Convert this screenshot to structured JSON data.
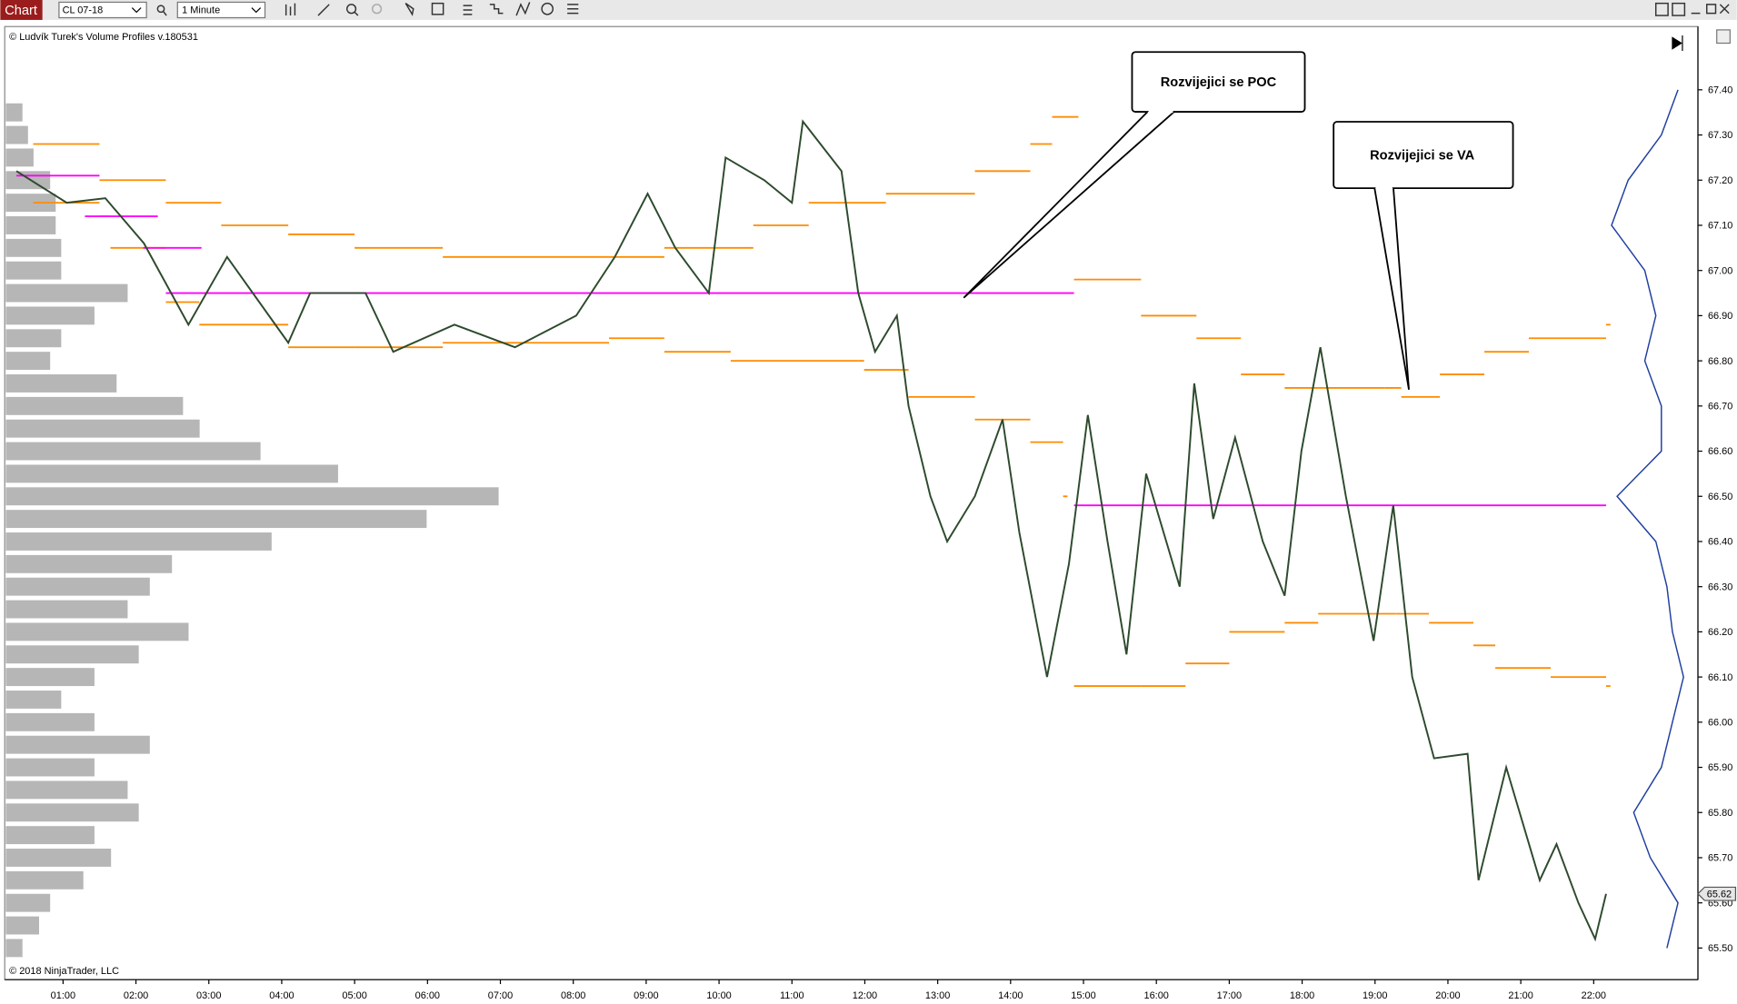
{
  "toolbar": {
    "tab": "Chart",
    "instrument": "CL 07-18",
    "interval": "1 Minute"
  },
  "chart_data": {
    "type": "line",
    "indicator_label": "© Ludvík Turek's Volume Profiles v.180531",
    "copyright": "© 2018 NinjaTrader, LLC",
    "annotations": [
      "Rozvijejici se POC",
      "Rozvijejici se VA"
    ],
    "x": [
      0.36,
      1.05,
      1.58,
      2.11,
      2.72,
      3.25,
      4.09,
      4.39,
      5.15,
      5.53,
      6.37,
      7.2,
      8.04,
      8.57,
      9.02,
      9.4,
      9.86,
      10.09,
      10.62,
      11.0,
      11.15,
      11.68,
      11.91,
      12.14,
      12.44,
      12.6,
      12.9,
      13.13,
      13.51,
      13.89,
      14.12,
      14.5,
      14.8,
      15.06,
      15.33,
      15.59,
      15.86,
      16.32,
      16.52,
      16.78,
      17.08,
      17.46,
      17.76,
      17.99,
      18.25,
      18.6,
      18.98,
      19.25,
      19.51,
      19.81,
      20.27,
      20.42,
      20.8,
      21.26,
      21.49,
      21.79,
      22.02,
      22.17
    ],
    "values": [
      67.22,
      67.15,
      67.16,
      67.06,
      66.88,
      67.03,
      66.84,
      66.95,
      66.95,
      66.82,
      66.88,
      66.83,
      66.9,
      67.03,
      67.17,
      67.05,
      66.95,
      67.25,
      67.2,
      67.15,
      67.33,
      67.22,
      66.95,
      66.82,
      66.9,
      66.7,
      66.5,
      66.4,
      66.5,
      66.67,
      66.42,
      66.1,
      66.35,
      66.68,
      66.4,
      66.15,
      66.55,
      66.3,
      66.75,
      66.45,
      66.63,
      66.4,
      66.28,
      66.6,
      66.83,
      66.5,
      66.18,
      66.48,
      66.1,
      65.92,
      65.93,
      65.65,
      65.9,
      65.65,
      65.73,
      65.6,
      65.52,
      65.62
    ],
    "color": "#2d4a2d",
    "poc_color": "#ff00ff",
    "poc": [
      {
        "x": [
          0.36,
          1.5
        ],
        "value": 67.21
      },
      {
        "x": [
          1.3,
          2.3
        ],
        "value": 67.12
      },
      {
        "x": [
          2.1,
          2.9
        ],
        "value": 67.05
      },
      {
        "x": [
          2.41,
          14.87
        ],
        "value": 66.95
      },
      {
        "x": [
          14.87,
          22.17
        ],
        "value": 66.48
      }
    ],
    "va_color": "#ff8c00",
    "value_area": [
      {
        "x": [
          0.59,
          1.5,
          2.41,
          3.17,
          4.09,
          5.0,
          6.21,
          8.49,
          9.25,
          10.47,
          11.23,
          12.29,
          13.51,
          14.27,
          14.57,
          14.87
        ],
        "values": [
          67.28,
          67.2,
          67.15,
          67.1,
          67.08,
          67.05,
          67.03,
          67.03,
          67.05,
          67.1,
          67.15,
          67.17,
          67.22,
          67.28,
          67.34,
          67.34
        ]
      },
      {
        "x": [
          0.59,
          1.5,
          1.65,
          2.41,
          2.87,
          4.09,
          5.0,
          6.21,
          8.49,
          9.25,
          10.16,
          11.91,
          11.99,
          12.6,
          13.51,
          14.27,
          14.72
        ],
        "values": [
          67.15,
          67.12,
          67.05,
          66.93,
          66.88,
          66.83,
          66.83,
          66.84,
          66.85,
          66.82,
          66.8,
          66.8,
          66.78,
          66.72,
          66.67,
          66.62,
          66.5
        ]
      },
      {
        "x": [
          14.87,
          15.79,
          16.55,
          17.16,
          17.76,
          19.13,
          19.36,
          19.89,
          20.5,
          21.11,
          22.17
        ],
        "values": [
          66.98,
          66.9,
          66.85,
          66.77,
          66.74,
          66.74,
          66.72,
          66.77,
          66.82,
          66.85,
          66.88
        ]
      },
      {
        "x": [
          14.87,
          15.79,
          16.4,
          17.0,
          17.76,
          18.22,
          19.28,
          19.74,
          20.35,
          20.65,
          21.41,
          22.17
        ],
        "values": [
          66.08,
          66.08,
          66.13,
          66.2,
          66.22,
          66.24,
          66.24,
          66.22,
          66.17,
          66.12,
          66.1,
          66.08
        ]
      }
    ],
    "profile_color": "#a9a9a9",
    "profile_levels": [
      67.35,
      67.3,
      67.25,
      67.2,
      67.15,
      67.1,
      67.05,
      67.0,
      66.95,
      66.9,
      66.85,
      66.8,
      66.75,
      66.7,
      66.65,
      66.6,
      66.55,
      66.5,
      66.45,
      66.4,
      66.35,
      66.3,
      66.25,
      66.2,
      66.15,
      66.1,
      66.05,
      66.0,
      65.95,
      65.9,
      65.85,
      65.8,
      65.75,
      65.7,
      65.65,
      65.6,
      65.55,
      65.5
    ],
    "profile_volumes": [
      15,
      20,
      25,
      40,
      45,
      45,
      50,
      50,
      110,
      80,
      50,
      40,
      100,
      160,
      175,
      230,
      300,
      445,
      380,
      240,
      150,
      130,
      110,
      165,
      120,
      80,
      50,
      80,
      130,
      80,
      110,
      120,
      80,
      95,
      70,
      40,
      30,
      15
    ],
    "right_profile_color": "#1f3f9f",
    "right_profile_levels": [
      67.4,
      67.3,
      67.2,
      67.1,
      67.0,
      66.9,
      66.8,
      66.7,
      66.6,
      66.5,
      66.4,
      66.3,
      66.2,
      66.1,
      66.0,
      65.9,
      65.8,
      65.7,
      65.6,
      65.5
    ],
    "right_profile_volumes": [
      15,
      30,
      60,
      75,
      45,
      35,
      45,
      30,
      30,
      70,
      35,
      25,
      20,
      10,
      20,
      30,
      55,
      40,
      15,
      25
    ],
    "xlim": [
      0.2,
      23.43
    ],
    "xticks": [
      {
        "value": 1,
        "label": "01:00"
      },
      {
        "value": 2,
        "label": "02:00"
      },
      {
        "value": 3,
        "label": "03:00"
      },
      {
        "value": 4,
        "label": "04:00"
      },
      {
        "value": 5,
        "label": "05:00"
      },
      {
        "value": 6,
        "label": "06:00"
      },
      {
        "value": 7,
        "label": "07:00"
      },
      {
        "value": 8,
        "label": "08:00"
      },
      {
        "value": 9,
        "label": "09:00"
      },
      {
        "value": 10,
        "label": "10:00"
      },
      {
        "value": 11,
        "label": "11:00"
      },
      {
        "value": 12,
        "label": "12:00"
      },
      {
        "value": 13,
        "label": "13:00"
      },
      {
        "value": 14,
        "label": "14:00"
      },
      {
        "value": 15,
        "label": "15:00"
      },
      {
        "value": 16,
        "label": "16:00"
      },
      {
        "value": 17,
        "label": "17:00"
      },
      {
        "value": 18,
        "label": "18:00"
      },
      {
        "value": 19,
        "label": "19:00"
      },
      {
        "value": 20,
        "label": "20:00"
      },
      {
        "value": 21,
        "label": "21:00"
      },
      {
        "value": 22,
        "label": "22:00"
      }
    ],
    "ylim": [
      65.43,
      67.54
    ],
    "yticks": [
      {
        "value": 65.5,
        "label": "65.50"
      },
      {
        "value": 65.6,
        "label": "65.60"
      },
      {
        "value": 65.7,
        "label": "65.70"
      },
      {
        "value": 65.8,
        "label": "65.80"
      },
      {
        "value": 65.9,
        "label": "65.90"
      },
      {
        "value": 66.0,
        "label": "66.00"
      },
      {
        "value": 66.1,
        "label": "66.10"
      },
      {
        "value": 66.2,
        "label": "66.20"
      },
      {
        "value": 66.3,
        "label": "66.30"
      },
      {
        "value": 66.4,
        "label": "66.40"
      },
      {
        "value": 66.5,
        "label": "66.50"
      },
      {
        "value": 66.6,
        "label": "66.60"
      },
      {
        "value": 66.7,
        "label": "66.70"
      },
      {
        "value": 66.8,
        "label": "66.80"
      },
      {
        "value": 66.9,
        "label": "66.90"
      },
      {
        "value": 67.0,
        "label": "67.00"
      },
      {
        "value": 67.1,
        "label": "67.10"
      },
      {
        "value": 67.2,
        "label": "67.20"
      },
      {
        "value": 67.3,
        "label": "67.30"
      },
      {
        "value": 67.4,
        "label": "67.40"
      }
    ],
    "grid": false
  }
}
